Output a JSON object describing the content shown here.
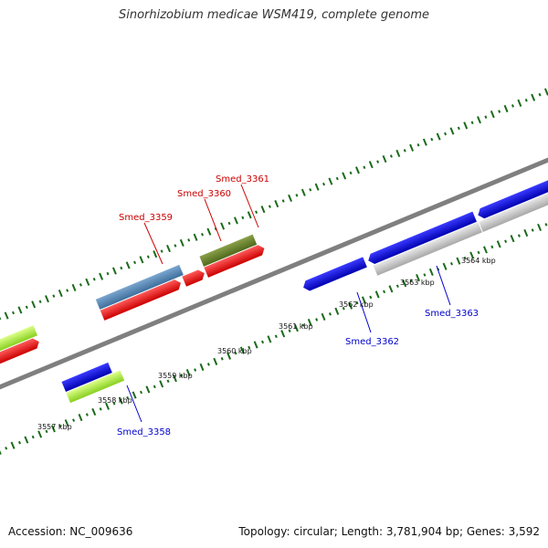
{
  "title": "Sinorhizobium medicae WSM419, complete genome",
  "footer": {
    "accession": "Accession: NC_009636",
    "summary": "Topology: circular; Length: 3,781,904 bp; Genes: 3,592"
  },
  "colors": {
    "label_top": "#cc0000",
    "label_bottom": "#0000cc",
    "tick": "#1a6b1a",
    "backbone": "#7f7f7f"
  },
  "ticks": [
    {
      "label": "3557 kbp"
    },
    {
      "label": "3558 kbp"
    },
    {
      "label": "3559 kbp"
    },
    {
      "label": "3560 kbp"
    },
    {
      "label": "3561 kbp"
    },
    {
      "label": "3562 kbp"
    },
    {
      "label": "3563 kbp"
    },
    {
      "label": "3564 kbp"
    }
  ],
  "genes": {
    "smed_3358": "Smed_3358",
    "smed_3359": "Smed_3359",
    "smed_3360": "Smed_3360",
    "smed_3361": "Smed_3361",
    "smed_3362": "Smed_3362",
    "smed_3363": "Smed_3363"
  }
}
